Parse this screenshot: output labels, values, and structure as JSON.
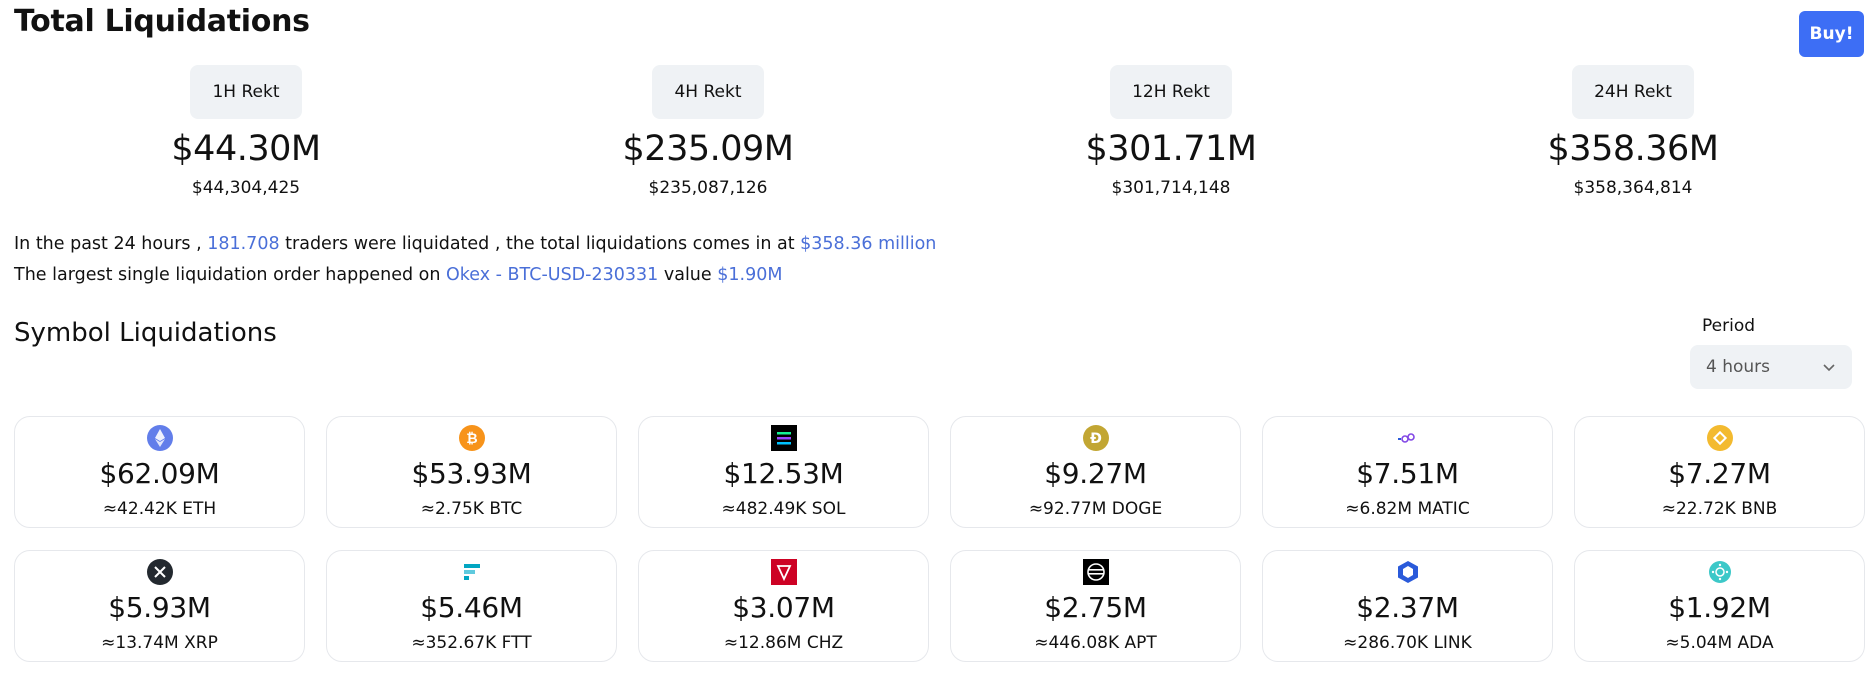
{
  "title": "Total Liquidations",
  "buy_label": "Buy!",
  "rekt": [
    {
      "label": "1H Rekt",
      "value": "$44.30M",
      "exact": "$44,304,425"
    },
    {
      "label": "4H Rekt",
      "value": "$235.09M",
      "exact": "$235,087,126"
    },
    {
      "label": "12H Rekt",
      "value": "$301.71M",
      "exact": "$301,714,148"
    },
    {
      "label": "24H Rekt",
      "value": "$358.36M",
      "exact": "$358,364,814"
    }
  ],
  "summary": {
    "l1_a": "In the past 24 hours ,",
    "traders": "181.708",
    "l1_b": "traders were liquidated , the total liquidations comes in at",
    "total": "$358.36 million",
    "l2_a": "The largest single liquidation order happened on",
    "exchange": "Okex - BTC-USD-230331",
    "l2_b": "value",
    "largest": "$1.90M"
  },
  "section_title": "Symbol Liquidations",
  "period": {
    "label": "Period",
    "selected": "4 hours"
  },
  "symbols": [
    {
      "icon": "eth-icon",
      "color": "#627eea",
      "value": "$62.09M",
      "qty": "≈42.42K ETH"
    },
    {
      "icon": "btc-icon",
      "color": "#f7931a",
      "value": "$53.93M",
      "qty": "≈2.75K BTC"
    },
    {
      "icon": "sol-icon",
      "color": "#000000",
      "value": "$12.53M",
      "qty": "≈482.49K SOL"
    },
    {
      "icon": "doge-icon",
      "color": "#c2a633",
      "value": "$9.27M",
      "qty": "≈92.77M DOGE"
    },
    {
      "icon": "matic-icon",
      "color": "#8247e5",
      "value": "$7.51M",
      "qty": "≈6.82M MATIC"
    },
    {
      "icon": "bnb-icon",
      "color": "#f3ba2f",
      "value": "$7.27M",
      "qty": "≈22.72K BNB"
    },
    {
      "icon": "xrp-icon",
      "color": "#23292f",
      "value": "$5.93M",
      "qty": "≈13.74M XRP"
    },
    {
      "icon": "ftt-icon",
      "color": "#02a6c2",
      "value": "$5.46M",
      "qty": "≈352.67K FTT"
    },
    {
      "icon": "chz-icon",
      "color": "#cd0124",
      "value": "$3.07M",
      "qty": "≈12.86M CHZ"
    },
    {
      "icon": "apt-icon",
      "color": "#000000",
      "value": "$2.75M",
      "qty": "≈446.08K APT"
    },
    {
      "icon": "link-icon",
      "color": "#2a5ada",
      "value": "$2.37M",
      "qty": "≈286.70K LINK"
    },
    {
      "icon": "ada-icon",
      "color": "#3cc8c8",
      "value": "$1.92M",
      "qty": "≈5.04M ADA"
    }
  ]
}
